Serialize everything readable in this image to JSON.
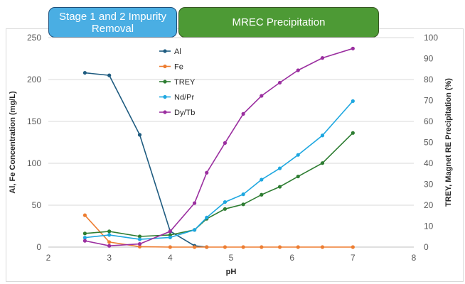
{
  "banners": [
    {
      "label": "Stage 1 and 2 Impurity Removal",
      "color": "#4aaee3"
    },
    {
      "label": "MREC Precipitation",
      "color": "#4d9a35"
    }
  ],
  "chart_data": {
    "type": "line",
    "xlabel": "pH",
    "ylabel_left": "Al, Fe Concentration (mg/L)",
    "ylabel_right": "TREY, Magnet RE Precipitation (%)",
    "xlim": [
      2,
      8
    ],
    "xticks": [
      2,
      3,
      4,
      5,
      6,
      7,
      8
    ],
    "ylim_left": [
      0,
      250
    ],
    "yticks_left": [
      0,
      50,
      100,
      150,
      200,
      250
    ],
    "ylim_right": [
      0,
      100
    ],
    "yticks_right": [
      0,
      10,
      20,
      30,
      40,
      50,
      60,
      70,
      80,
      90,
      100
    ],
    "grid": "horizontal",
    "legend_position": "inside-top-center",
    "series": [
      {
        "name": "Al",
        "axis": "left",
        "color": "#1f5c80",
        "x": [
          2.6,
          3.0,
          3.5,
          4.0,
          4.4,
          4.6
        ],
        "y": [
          208,
          205,
          134,
          19,
          1.5,
          0
        ]
      },
      {
        "name": "Fe",
        "axis": "left",
        "color": "#ed7d31",
        "x": [
          2.6,
          3.0,
          3.5,
          4.0,
          4.4,
          4.6,
          4.9,
          5.2,
          5.5,
          5.8,
          6.1,
          6.5,
          7.0
        ],
        "y": [
          38,
          6,
          0.5,
          0,
          0,
          0,
          0,
          0,
          0,
          0,
          0,
          0,
          0
        ]
      },
      {
        "name": "TREY",
        "axis": "right",
        "color": "#2e7d32",
        "x": [
          2.6,
          3.0,
          3.5,
          4.0,
          4.4,
          4.6,
          4.9,
          5.2,
          5.5,
          5.8,
          6.1,
          6.5,
          7.0
        ],
        "y": [
          6.5,
          7.5,
          5.1,
          5.8,
          8.2,
          13.5,
          18.2,
          20.4,
          25.0,
          28.8,
          33.7,
          40.1,
          54.5
        ]
      },
      {
        "name": "Nd/Pr",
        "axis": "right",
        "color": "#1ea7e0",
        "x": [
          2.6,
          3.0,
          3.5,
          4.0,
          4.4,
          4.6,
          4.9,
          5.2,
          5.5,
          5.8,
          6.1,
          6.5,
          7.0
        ],
        "y": [
          4.5,
          5.8,
          3.7,
          4.6,
          8.2,
          14.1,
          21.5,
          25.2,
          32.2,
          37.6,
          44.0,
          53.3,
          69.7
        ]
      },
      {
        "name": "Dy/Tb",
        "axis": "right",
        "color": "#9b2fa0",
        "x": [
          2.6,
          3.0,
          3.5,
          4.0,
          4.4,
          4.6,
          4.9,
          5.2,
          5.5,
          5.8,
          6.1,
          6.5,
          7.0
        ],
        "y": [
          3.0,
          0.6,
          1.5,
          7.5,
          21.0,
          35.5,
          49.7,
          63.6,
          72.2,
          78.5,
          84.4,
          90.3,
          94.8
        ]
      }
    ]
  }
}
